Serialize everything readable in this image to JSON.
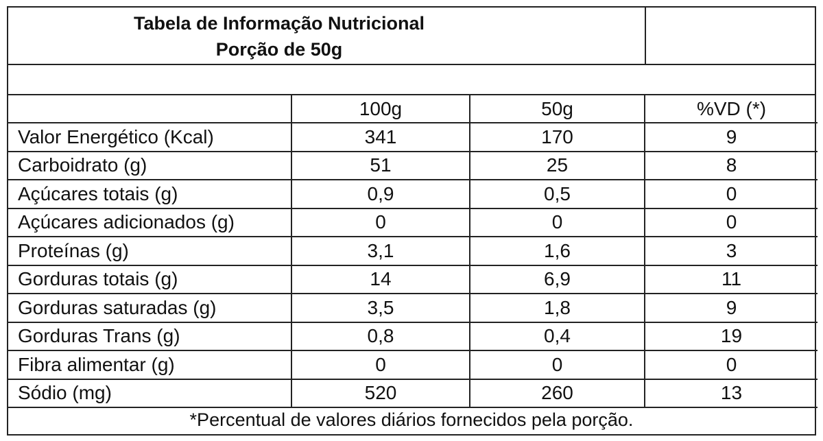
{
  "title": {
    "line1": "Tabela de Informação Nutricional",
    "line2": "Porção de 50g"
  },
  "columns": [
    "100g",
    "50g",
    "%VD (*)"
  ],
  "rows": [
    {
      "label": "Valor Energético (Kcal)",
      "v100": "341",
      "v50": "170",
      "vd": "9"
    },
    {
      "label": "Carboidrato (g)",
      "v100": "51",
      "v50": "25",
      "vd": "8"
    },
    {
      "label": "Açúcares totais (g)",
      "v100": "0,9",
      "v50": "0,5",
      "vd": "0"
    },
    {
      "label": "Açúcares adicionados (g)",
      "v100": "0",
      "v50": "0",
      "vd": "0"
    },
    {
      "label": "Proteínas (g)",
      "v100": "3,1",
      "v50": "1,6",
      "vd": "3"
    },
    {
      "label": "Gorduras totais (g)",
      "v100": "14",
      "v50": "6,9",
      "vd": "11"
    },
    {
      "label": "Gorduras saturadas (g)",
      "v100": "3,5",
      "v50": "1,8",
      "vd": "9"
    },
    {
      "label": "Gorduras Trans (g)",
      "v100": "0,8",
      "v50": "0,4",
      "vd": "19"
    },
    {
      "label": "Fibra alimentar (g)",
      "v100": "0",
      "v50": "0",
      "vd": "0"
    },
    {
      "label": "Sódio (mg)",
      "v100": "520",
      "v50": "260",
      "vd": "13"
    }
  ],
  "footnote": "*Percentual de valores diários fornecidos pela porção."
}
